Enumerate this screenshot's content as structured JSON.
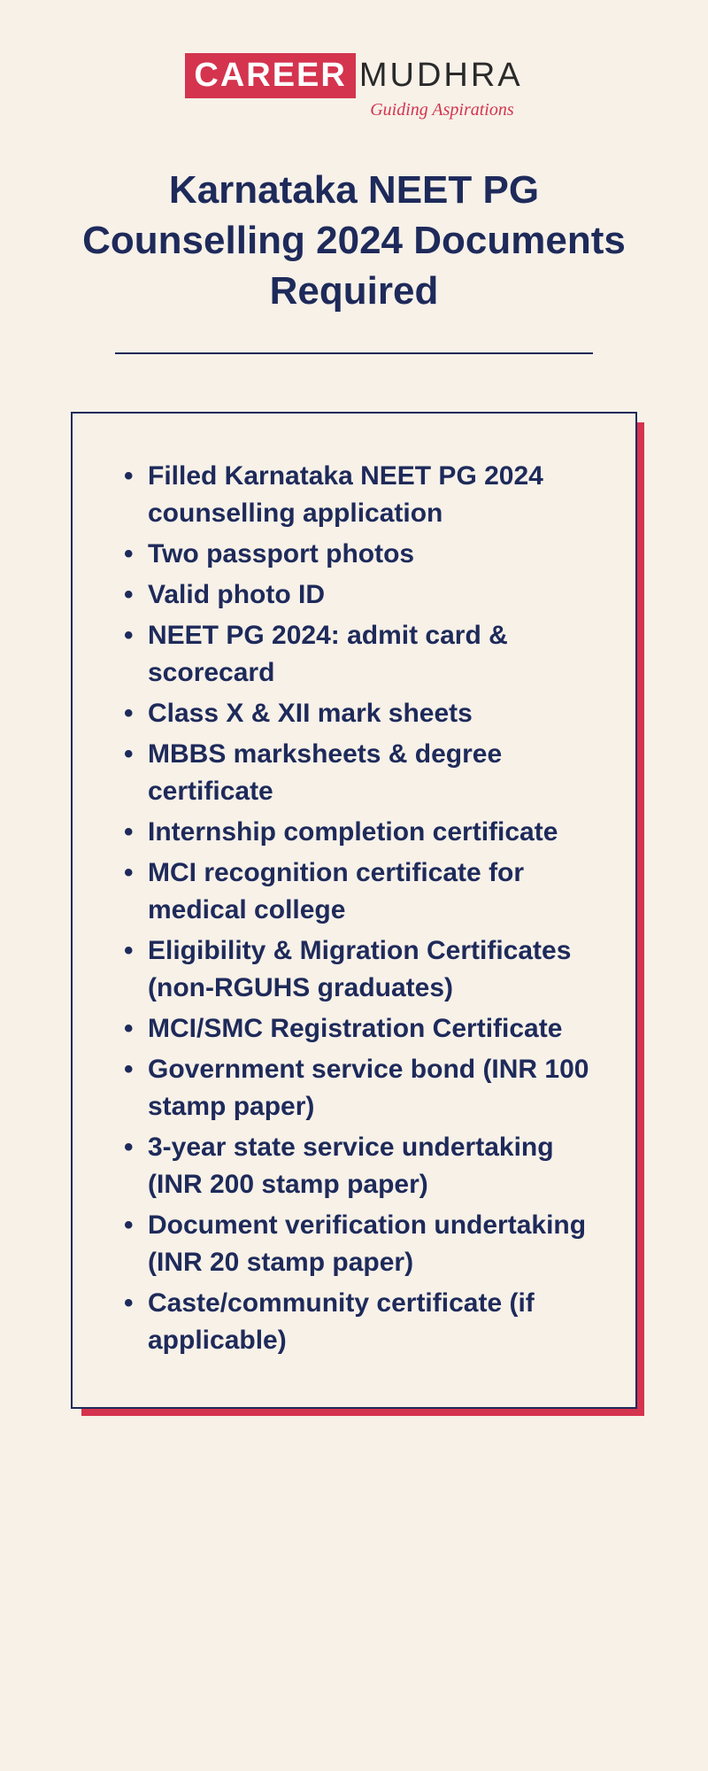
{
  "logo": {
    "career": "CAREER",
    "mudhra": "MUDHRA",
    "tagline": "Guiding Aspirations"
  },
  "title": "Karnataka NEET PG Counselling 2024 Documents Required",
  "documents": [
    "Filled Karnataka NEET PG 2024 counselling application",
    "Two passport photos",
    "Valid photo ID",
    "NEET PG 2024: admit card & scorecard",
    "Class X & XII mark sheets",
    "MBBS marksheets & degree certificate",
    "Internship completion certificate",
    "MCI recognition certificate for medical college",
    "Eligibility & Migration Certificates (non-RGUHS graduates)",
    "MCI/SMC Registration Certificate",
    "Government service bond (INR 100 stamp paper)",
    "3-year state service undertaking (INR 200 stamp paper)",
    "Document verification undertaking (INR 20 stamp paper)",
    "Caste/community certificate (if applicable)"
  ],
  "colors": {
    "background": "#f7f1e8",
    "primary_text": "#1e2a5a",
    "accent_red": "#d4344e",
    "logo_dark": "#2a2a2a"
  },
  "typography": {
    "title_fontsize": 44,
    "list_fontsize": 30,
    "logo_fontsize": 38
  }
}
